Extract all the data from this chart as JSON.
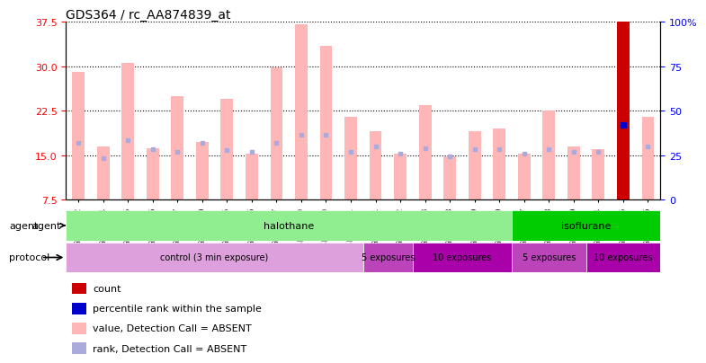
{
  "title": "GDS364 / rc_AA874839_at",
  "samples": [
    "GSM5082",
    "GSM5084",
    "GSM5085",
    "GSM5086",
    "GSM5087",
    "GSM5090",
    "GSM5105",
    "GSM5106",
    "GSM5107",
    "GSM11379",
    "GSM11380",
    "GSM11381",
    "GSM5111",
    "GSM5112",
    "GSM5113",
    "GSM5108",
    "GSM5109",
    "GSM5110",
    "GSM5117",
    "GSM5118",
    "GSM5119",
    "GSM5114",
    "GSM5115",
    "GSM5116"
  ],
  "values": [
    29.0,
    16.5,
    30.5,
    16.2,
    25.0,
    17.2,
    24.5,
    15.2,
    29.8,
    37.0,
    33.5,
    21.5,
    19.0,
    15.2,
    23.5,
    14.8,
    19.0,
    19.5,
    15.2,
    22.5,
    16.5,
    16.0,
    37.5,
    21.5
  ],
  "ranks": [
    17.0,
    14.5,
    17.5,
    16.0,
    15.5,
    17.0,
    15.8,
    15.5,
    17.0,
    18.5,
    18.5,
    15.5,
    16.5,
    15.2,
    16.2,
    14.8,
    16.0,
    16.0,
    15.2,
    16.0,
    15.5,
    15.5,
    42.0,
    16.5
  ],
  "is_count_bar": [
    false,
    false,
    false,
    false,
    false,
    false,
    false,
    false,
    false,
    false,
    false,
    false,
    false,
    false,
    false,
    false,
    false,
    false,
    false,
    false,
    false,
    false,
    true,
    false
  ],
  "is_percentile_dot": [
    false,
    false,
    false,
    false,
    false,
    false,
    false,
    false,
    false,
    false,
    false,
    false,
    false,
    false,
    false,
    false,
    false,
    false,
    false,
    false,
    false,
    false,
    true,
    false
  ],
  "ylim_left": [
    7.5,
    37.5
  ],
  "ylim_right": [
    0,
    100
  ],
  "yticks_left": [
    7.5,
    15.0,
    22.5,
    30.0,
    37.5
  ],
  "yticks_right": [
    0,
    25,
    50,
    75,
    100
  ],
  "bar_color_absent": "#FFB6B6",
  "rank_color_absent": "#AAAADD",
  "count_bar_color": "#CC0000",
  "percentile_dot_color": "#0000CC",
  "agent_groups": [
    {
      "label": "halothane",
      "start": 0,
      "end": 17,
      "color": "#90EE90"
    },
    {
      "label": "isoflurane",
      "start": 18,
      "end": 23,
      "color": "#00CC00"
    }
  ],
  "protocol_groups": [
    {
      "label": "control (3 min exposure)",
      "start": 0,
      "end": 11,
      "color": "#DDA0DD"
    },
    {
      "label": "5 exposures",
      "start": 12,
      "end": 13,
      "color": "#CC55CC"
    },
    {
      "label": "10 exposures",
      "start": 14,
      "end": 17,
      "color": "#CC00CC"
    },
    {
      "label": "5 exposures",
      "start": 18,
      "end": 20,
      "color": "#CC55CC"
    },
    {
      "label": "10 exposures",
      "start": 21,
      "end": 23,
      "color": "#CC00CC"
    }
  ],
  "legend_items": [
    {
      "color": "#CC0000",
      "label": "count",
      "marker": "s"
    },
    {
      "color": "#0000CC",
      "label": "percentile rank within the sample",
      "marker": "s"
    },
    {
      "color": "#FFB6B6",
      "label": "value, Detection Call = ABSENT",
      "marker": "s"
    },
    {
      "color": "#AAAADD",
      "label": "rank, Detection Call = ABSENT",
      "marker": "s"
    }
  ]
}
